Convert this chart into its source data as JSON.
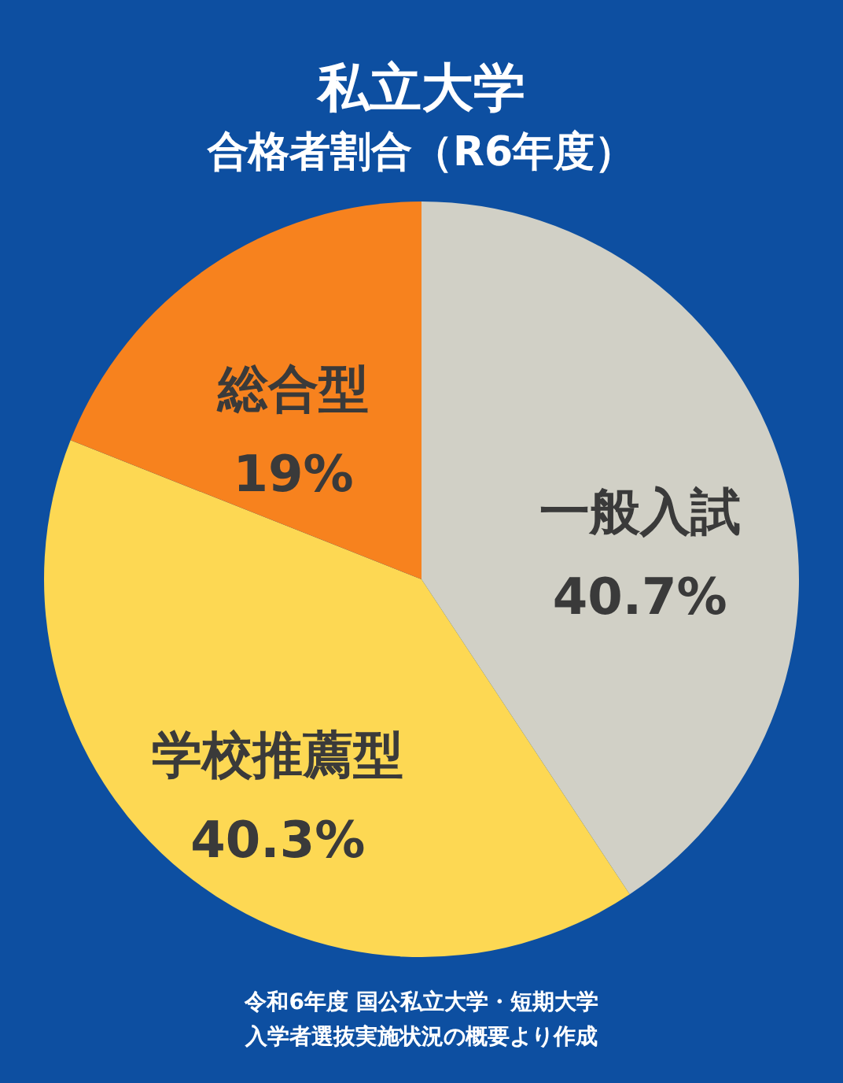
{
  "chart_data": {
    "type": "pie",
    "title": "私立大学",
    "subtitle": "合格者割合（R6年度）",
    "categories": [
      "一般入試",
      "学校推薦型",
      "総合型"
    ],
    "values": [
      40.7,
      40.3,
      19
    ],
    "value_labels": [
      "40.7%",
      "40.3%",
      "19%"
    ],
    "colors": [
      "#d1d0c6",
      "#fdd853",
      "#f7821e"
    ],
    "annotations": [
      "令和6年度 国公私立大学・短期大学",
      "入学者選抜実施状況の概要より作成"
    ]
  }
}
